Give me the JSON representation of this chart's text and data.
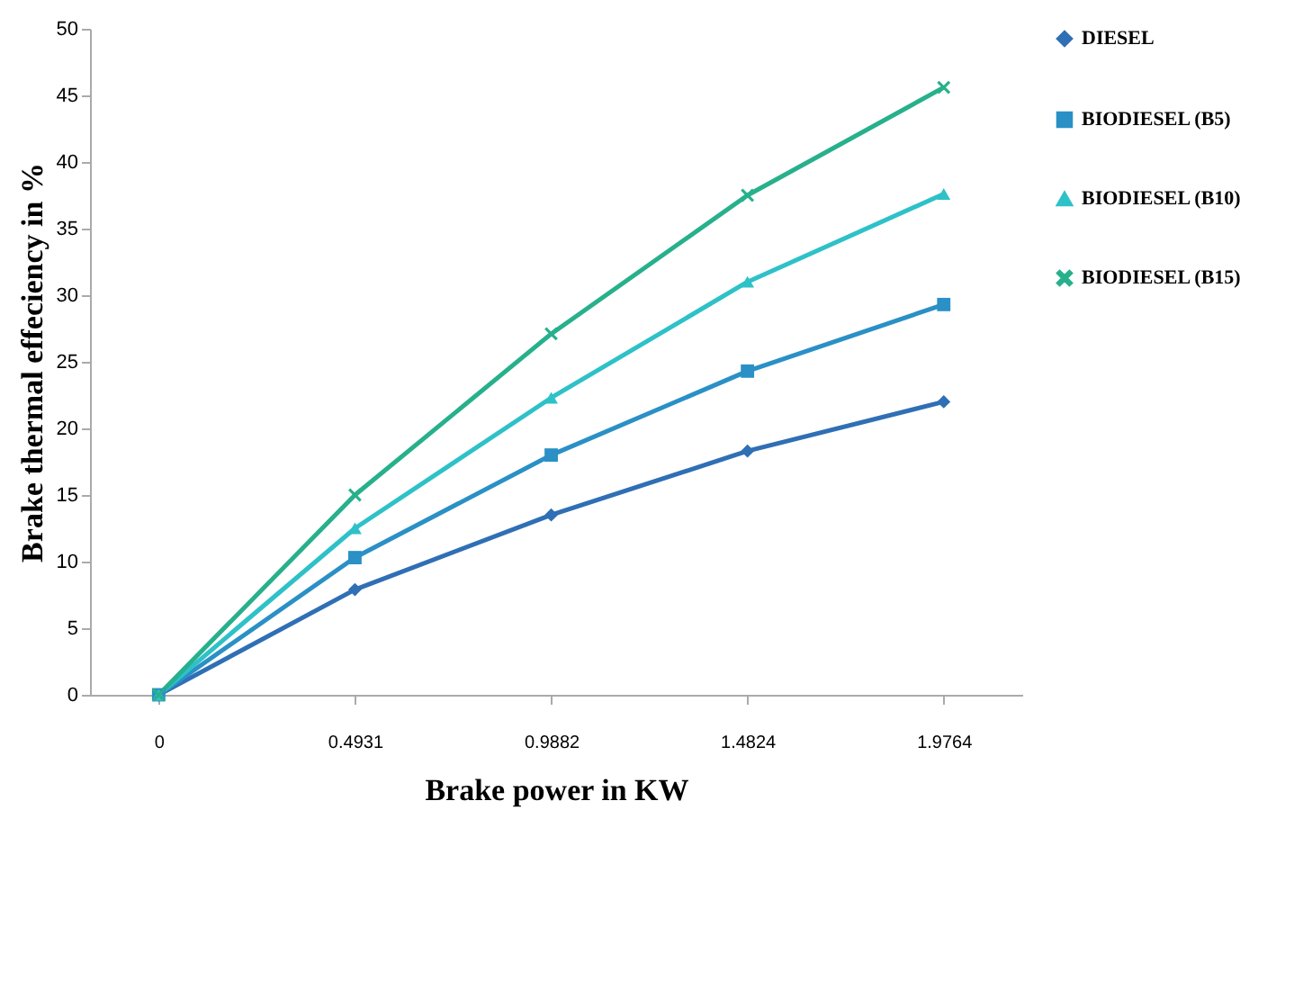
{
  "chart_data": {
    "type": "line",
    "xlabel": "Brake power in KW",
    "ylabel": "Brake thermal effeciency in %",
    "categories": [
      "0",
      "0.4931",
      "0.9882",
      "1.4824",
      "1.9764"
    ],
    "series": [
      {
        "name": "DIESEL",
        "color": "#2f6fb5",
        "marker": "diamond",
        "values": [
          0,
          7.9,
          13.5,
          18.3,
          22.0
        ]
      },
      {
        "name": "BIODIESEL (B5)",
        "color": "#2a90c6",
        "marker": "square",
        "values": [
          0,
          10.3,
          18.0,
          24.3,
          29.3
        ]
      },
      {
        "name": "BIODIESEL (B10)",
        "color": "#2ec1c8",
        "marker": "triangle",
        "values": [
          0,
          12.5,
          22.3,
          31.0,
          37.6
        ]
      },
      {
        "name": "BIODIESEL (B15)",
        "color": "#27b08c",
        "marker": "cross",
        "values": [
          0,
          15.0,
          27.1,
          37.5,
          45.6
        ]
      }
    ],
    "ylim": [
      0,
      50
    ],
    "yticks": [
      0,
      5,
      10,
      15,
      20,
      25,
      30,
      35,
      40,
      45,
      50
    ],
    "grid": false,
    "legend": "right",
    "line_style": "solid"
  }
}
